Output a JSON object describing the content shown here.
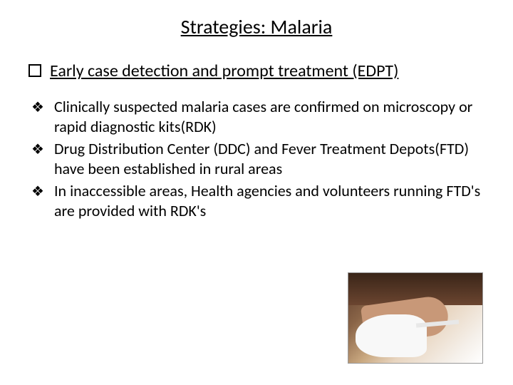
{
  "title": "Strategies: Malaria",
  "section": {
    "heading": "Early case detection and prompt treatment (EDPT)"
  },
  "bullets": [
    {
      "text": "Clinically suspected malaria cases are confirmed on microscopy or rapid diagnostic kits(RDK)"
    },
    {
      "text": "Drug Distribution Center (DDC) and Fever Treatment Depots(FTD) have been established in rural areas"
    },
    {
      "text": "In inaccessible areas, Health agencies and volunteers running FTD's are provided with  RDK's"
    }
  ],
  "image": {
    "alt": "Finger prick blood test for malaria diagnosis"
  },
  "colors": {
    "text": "#000000",
    "background": "#ffffff"
  }
}
